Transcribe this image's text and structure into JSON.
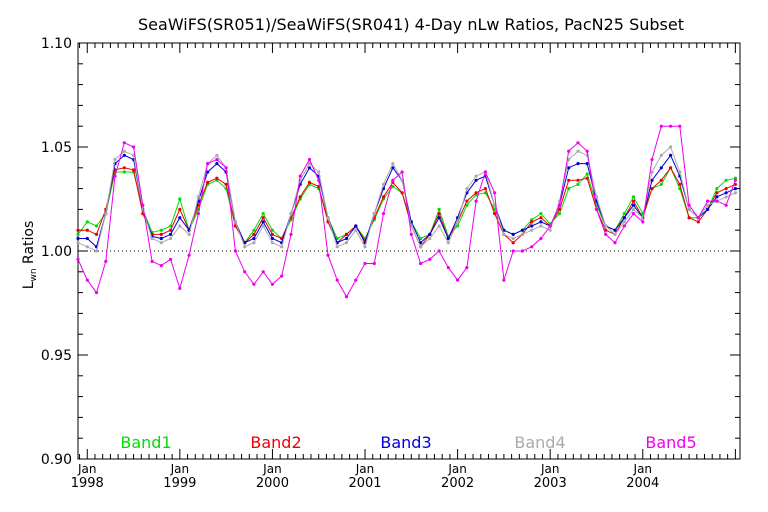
{
  "chart_data": {
    "type": "line",
    "title": "SeaWiFS(SR051)/SeaWiFS(SR041) 4-Day nLw Ratios, PacN25 Subset",
    "ylabel_main": "L",
    "ylabel_sub": "wn",
    "ylabel_rest": " Ratios",
    "xlabel": "",
    "ylim": [
      0.9,
      1.1
    ],
    "yticks": [
      "0.90",
      "0.95",
      "1.00",
      "1.05",
      "1.10"
    ],
    "xlim": [
      1997.9,
      2005.05
    ],
    "xticks": [
      {
        "month": "Jan",
        "year": "1998",
        "x": 1998.0
      },
      {
        "month": "Jan",
        "year": "1999",
        "x": 1999.0
      },
      {
        "month": "Jan",
        "year": "2000",
        "x": 2000.0
      },
      {
        "month": "Jan",
        "year": "2001",
        "x": 2001.0
      },
      {
        "month": "Jan",
        "year": "2002",
        "x": 2002.0
      },
      {
        "month": "Jan",
        "year": "2003",
        "x": 2003.0
      },
      {
        "month": "Jan",
        "year": "2004",
        "x": 2004.0
      }
    ],
    "reference_line": 1.0,
    "grid": false,
    "legend_placement": "bottom",
    "x": [
      1997.9,
      1998.0,
      1998.1,
      1998.2,
      1998.3,
      1998.4,
      1998.5,
      1998.6,
      1998.7,
      1998.8,
      1998.9,
      1999.0,
      1999.1,
      1999.2,
      1999.3,
      1999.4,
      1999.5,
      1999.6,
      1999.7,
      1999.8,
      1999.9,
      2000.0,
      2000.1,
      2000.2,
      2000.3,
      2000.4,
      2000.5,
      2000.6,
      2000.7,
      2000.8,
      2000.9,
      2001.0,
      2001.1,
      2001.2,
      2001.3,
      2001.4,
      2001.5,
      2001.6,
      2001.7,
      2001.8,
      2001.9,
      2002.0,
      2002.1,
      2002.2,
      2002.3,
      2002.4,
      2002.5,
      2002.6,
      2002.7,
      2002.8,
      2002.9,
      2003.0,
      2003.1,
      2003.2,
      2003.3,
      2003.4,
      2003.5,
      2003.6,
      2003.7,
      2003.8,
      2003.9,
      2004.0,
      2004.1,
      2004.2,
      2004.3,
      2004.4,
      2004.5,
      2004.6,
      2004.7,
      2004.8,
      2004.9,
      2005.0
    ],
    "series": [
      {
        "name": "Band1",
        "color": "#00dd00",
        "values": [
          1.008,
          1.014,
          1.012,
          1.018,
          1.038,
          1.038,
          1.038,
          1.02,
          1.009,
          1.01,
          1.012,
          1.025,
          1.01,
          1.02,
          1.032,
          1.034,
          1.03,
          1.012,
          1.004,
          1.01,
          1.018,
          1.01,
          1.006,
          1.015,
          1.025,
          1.032,
          1.03,
          1.016,
          1.006,
          1.008,
          1.012,
          1.006,
          1.015,
          1.025,
          1.031,
          1.028,
          1.014,
          1.006,
          1.008,
          1.02,
          1.007,
          1.012,
          1.022,
          1.027,
          1.028,
          1.02,
          1.01,
          1.008,
          1.01,
          1.015,
          1.018,
          1.013,
          1.018,
          1.03,
          1.032,
          1.037,
          1.022,
          1.012,
          1.01,
          1.018,
          1.026,
          1.018,
          1.03,
          1.032,
          1.04,
          1.03,
          1.016,
          1.016,
          1.02,
          1.03,
          1.034,
          1.035
        ]
      },
      {
        "name": "Band2",
        "color": "#ee0000",
        "values": [
          1.01,
          1.01,
          1.008,
          1.02,
          1.039,
          1.04,
          1.039,
          1.018,
          1.008,
          1.008,
          1.01,
          1.02,
          1.01,
          1.022,
          1.033,
          1.035,
          1.032,
          1.012,
          1.004,
          1.008,
          1.016,
          1.008,
          1.006,
          1.016,
          1.026,
          1.033,
          1.031,
          1.014,
          1.004,
          1.008,
          1.012,
          1.005,
          1.016,
          1.026,
          1.033,
          1.028,
          1.012,
          1.002,
          1.008,
          1.018,
          1.006,
          1.014,
          1.024,
          1.028,
          1.03,
          1.018,
          1.008,
          1.004,
          1.008,
          1.014,
          1.016,
          1.012,
          1.02,
          1.034,
          1.034,
          1.035,
          1.02,
          1.01,
          1.008,
          1.016,
          1.024,
          1.016,
          1.03,
          1.034,
          1.04,
          1.032,
          1.016,
          1.014,
          1.02,
          1.028,
          1.03,
          1.032
        ]
      },
      {
        "name": "Band3",
        "color": "#0000dd",
        "values": [
          1.006,
          1.006,
          1.002,
          1.018,
          1.042,
          1.046,
          1.044,
          1.02,
          1.007,
          1.006,
          1.008,
          1.016,
          1.01,
          1.024,
          1.038,
          1.042,
          1.038,
          1.014,
          1.004,
          1.006,
          1.014,
          1.006,
          1.004,
          1.018,
          1.032,
          1.04,
          1.036,
          1.016,
          1.004,
          1.006,
          1.012,
          1.004,
          1.018,
          1.03,
          1.04,
          1.034,
          1.014,
          1.004,
          1.008,
          1.016,
          1.006,
          1.016,
          1.028,
          1.034,
          1.036,
          1.022,
          1.01,
          1.008,
          1.01,
          1.012,
          1.014,
          1.012,
          1.022,
          1.04,
          1.042,
          1.042,
          1.024,
          1.012,
          1.01,
          1.016,
          1.022,
          1.016,
          1.034,
          1.04,
          1.046,
          1.036,
          1.02,
          1.016,
          1.02,
          1.026,
          1.028,
          1.03
        ]
      },
      {
        "name": "Band4",
        "color": "#aaaaaa",
        "values": [
          1.004,
          1.002,
          1.0,
          1.018,
          1.044,
          1.048,
          1.046,
          1.02,
          1.006,
          1.004,
          1.006,
          1.012,
          1.008,
          1.026,
          1.042,
          1.046,
          1.04,
          1.014,
          1.002,
          1.004,
          1.012,
          1.004,
          1.002,
          1.018,
          1.034,
          1.042,
          1.038,
          1.016,
          1.002,
          1.004,
          1.01,
          1.002,
          1.018,
          1.032,
          1.042,
          1.034,
          1.012,
          1.002,
          1.006,
          1.012,
          1.004,
          1.014,
          1.03,
          1.036,
          1.038,
          1.022,
          1.008,
          1.006,
          1.008,
          1.01,
          1.012,
          1.01,
          1.024,
          1.044,
          1.048,
          1.046,
          1.026,
          1.012,
          1.008,
          1.014,
          1.02,
          1.016,
          1.038,
          1.046,
          1.05,
          1.038,
          1.02,
          1.016,
          1.022,
          1.024,
          1.026,
          1.028
        ]
      },
      {
        "name": "Band5",
        "color": "#ee00ee",
        "values": [
          0.996,
          0.986,
          0.98,
          0.995,
          1.036,
          1.052,
          1.05,
          1.022,
          0.995,
          0.993,
          0.996,
          0.982,
          0.998,
          1.018,
          1.042,
          1.044,
          1.04,
          1.0,
          0.99,
          0.984,
          0.99,
          0.984,
          0.988,
          1.008,
          1.036,
          1.044,
          1.034,
          0.998,
          0.986,
          0.978,
          0.986,
          0.994,
          0.994,
          1.018,
          1.034,
          1.038,
          1.008,
          0.994,
          0.996,
          1.0,
          0.992,
          0.986,
          0.992,
          1.024,
          1.038,
          1.028,
          0.986,
          1.0,
          1.0,
          1.002,
          1.006,
          1.012,
          1.022,
          1.048,
          1.052,
          1.048,
          1.02,
          1.008,
          1.004,
          1.012,
          1.018,
          1.014,
          1.044,
          1.06,
          1.06,
          1.06,
          1.022,
          1.016,
          1.024,
          1.024,
          1.022,
          1.034
        ]
      }
    ]
  }
}
